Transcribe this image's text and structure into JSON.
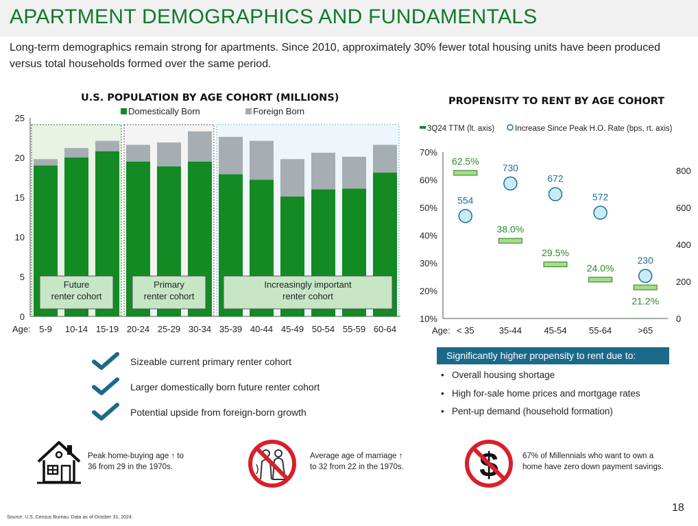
{
  "header": {
    "title": "APARTMENT DEMOGRAPHICS AND FUNDAMENTALS",
    "subtitle": "Long-term demographics remain strong for apartments. Since 2010, approximately 30% fewer total housing units have been produced versus total households formed over the same period."
  },
  "colors": {
    "brand_green": "#0e7a2c",
    "domestic": "#138a24",
    "foreign": "#a6aeb3",
    "propensity_fill": "#a5dc87",
    "propensity_stroke": "#2a7a27",
    "increase_fill": "#c9ebf6",
    "increase_stroke": "#1d6f94",
    "callout_bg": "#1c6a8a"
  },
  "chart_data": [
    {
      "type": "bar",
      "stacked": true,
      "title": "U.S. POPULATION BY AGE COHORT (MILLIONS)",
      "x_prefix": "Age:",
      "categories": [
        "5-9",
        "10-14",
        "15-19",
        "20-24",
        "25-29",
        "30-34",
        "35-39",
        "40-44",
        "45-49",
        "50-54",
        "55-59",
        "60-64"
      ],
      "series": [
        {
          "name": "Domestically Born",
          "values": [
            19.0,
            20.0,
            20.8,
            19.5,
            18.9,
            19.5,
            17.9,
            17.2,
            15.1,
            16.0,
            16.1,
            18.1
          ]
        },
        {
          "name": "Foreign Born",
          "values": [
            0.8,
            1.2,
            1.3,
            2.1,
            3.0,
            3.8,
            4.7,
            4.9,
            4.7,
            4.6,
            4.0,
            3.5
          ]
        }
      ],
      "ylim": [
        0,
        25
      ],
      "yticks": [
        0,
        5,
        10,
        15,
        20,
        25
      ],
      "legend_position": "top",
      "cohort_labels": [
        {
          "text": "Future\nrenter cohort",
          "from": "5-9",
          "to": "15-19"
        },
        {
          "text": "Primary\nrenter cohort",
          "from": "20-24",
          "to": "30-34"
        },
        {
          "text": "Increasingly important\nrenter cohort",
          "from": "35-39",
          "to": "60-64"
        }
      ]
    },
    {
      "type": "scatter",
      "title": "PROPENSITY TO RENT BY AGE COHORT",
      "x_prefix": "Age:",
      "categories": [
        "< 35",
        "35-44",
        "45-54",
        "55-64",
        ">65"
      ],
      "series": [
        {
          "name": "3Q24 TTM (lt. axis)",
          "axis": "left",
          "values": [
            62.5,
            38.0,
            29.5,
            24.0,
            21.2
          ],
          "labels": [
            "62.5%",
            "38.0%",
            "29.5%",
            "24.0%",
            "21.2%"
          ]
        },
        {
          "name": "Increase Since Peak H.O. Rate (bps, rt. axis)",
          "axis": "right",
          "values": [
            554,
            730,
            672,
            572,
            230
          ],
          "labels": [
            "554",
            "730",
            "672",
            "572",
            "230"
          ]
        }
      ],
      "ylim_left": [
        10,
        70
      ],
      "yticks_left": [
        "10%",
        "20%",
        "30%",
        "40%",
        "50%",
        "60%",
        "70%"
      ],
      "ylim_right": [
        0,
        900
      ],
      "yticks_right": [
        "0",
        "200",
        "400",
        "600",
        "800"
      ],
      "legend_position": "top"
    }
  ],
  "checklist": [
    "Sizeable current primary renter cohort",
    "Larger domestically born future renter cohort",
    "Potential upside from foreign-born growth"
  ],
  "callout": {
    "title": "Significantly higher propensity to rent due to:",
    "bullets": [
      "Overall housing shortage",
      "High for-sale home prices and mortgage rates",
      "Pent-up demand (household formation)"
    ]
  },
  "facts": [
    {
      "line1": "Peak home-buying age ↑ to",
      "line2": "36 from 29 in the 1970s.",
      "icon": "house-icon"
    },
    {
      "line1": "Average age of marriage ↑",
      "line2": "to 32 from 22 in the 1970s.",
      "icon": "no-marriage-icon"
    },
    {
      "line1": "67% of Millennials who want to own a",
      "line2": "home have zero down payment savings.",
      "icon": "no-dollar-icon"
    }
  ],
  "footer": {
    "source": "Source: U.S. Census Bureau. Data as of October 31, 2024.",
    "page_number": "18"
  }
}
